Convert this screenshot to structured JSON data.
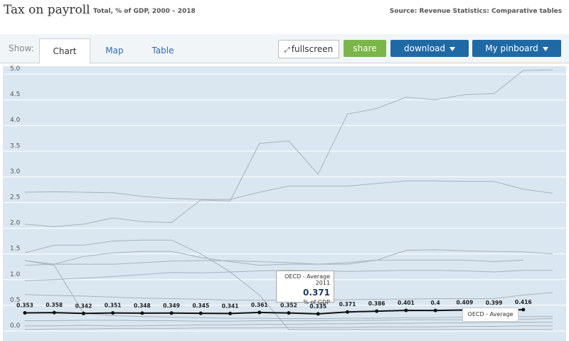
{
  "header": {
    "title": "Tax on payroll",
    "subtitle": "Total, % of GDP, 2000 – 2018",
    "source": "Source: Revenue Statistics: Comparative tables"
  },
  "toolbar": {
    "show": "Show:",
    "tabs": [
      "Chart",
      "Map",
      "Table"
    ],
    "fullscreen": "fullscreen",
    "share": "share",
    "download": "download",
    "pinboard": "My pinboard"
  },
  "chart_data": {
    "type": "line",
    "categories": [
      null,
      null,
      null,
      null,
      null,
      null,
      null,
      null,
      null,
      null,
      null,
      null,
      null,
      null,
      null,
      null,
      null,
      null,
      null
    ],
    "ylim": [
      0,
      5.2
    ],
    "yticks": [
      {
        "value": 0,
        "label": "0.0"
      },
      {
        "value": 0.5,
        "label": "0.5"
      },
      {
        "value": 1,
        "label": "1.0"
      },
      {
        "value": 1.5,
        "label": "1.5"
      },
      {
        "value": 2,
        "label": "2.0"
      },
      {
        "value": 2.5,
        "label": "2.5"
      },
      {
        "value": 3,
        "label": "3.0"
      },
      {
        "value": 3.5,
        "label": "3.5"
      },
      {
        "value": 4,
        "label": "4.0"
      },
      {
        "value": 4.5,
        "label": "4.5"
      },
      {
        "value": 5,
        "label": "5.0"
      }
    ],
    "grid": true,
    "series": [
      {
        "name": "OECD - Average",
        "color": "#111111",
        "values": [
          0.353,
          0.358,
          0.342,
          0.351,
          0.348,
          0.349,
          0.345,
          0.341,
          0.361,
          0.352,
          0.335,
          0.371,
          0.386,
          0.401,
          0.4,
          0.409,
          0.399,
          0.416,
          null
        ]
      },
      {
        "color": "#a5b2bd",
        "values": [
          2.08,
          2.03,
          2.08,
          2.2,
          2.13,
          2.11,
          2.55,
          2.53,
          3.65,
          3.7,
          3.05,
          4.22,
          4.33,
          4.55,
          4.5,
          4.6,
          4.62,
          5.07,
          5.08
        ]
      },
      {
        "color": "#a5b2bd",
        "values": [
          2.7,
          2.71,
          2.7,
          2.69,
          2.62,
          2.58,
          2.56,
          2.56,
          2.7,
          2.82,
          2.82,
          2.82,
          2.87,
          2.92,
          2.92,
          2.91,
          2.91,
          2.76,
          2.68
        ]
      },
      {
        "color": "#a5b2bd",
        "values": [
          1.52,
          1.67,
          1.67,
          1.75,
          1.77,
          1.77,
          1.5,
          1.15,
          0.7,
          0.03,
          0.03,
          0.03,
          0.03,
          0.03,
          0.03,
          0.03,
          0.03,
          0.03,
          0.03
        ]
      },
      {
        "color": "#a5b2bd",
        "values": [
          1.28,
          1.3,
          1.45,
          1.52,
          1.55,
          1.55,
          1.43,
          1.35,
          1.28,
          1.3,
          1.3,
          1.3,
          1.38,
          1.57,
          1.58,
          1.56,
          1.55,
          1.54,
          1.5
        ]
      },
      {
        "color": "#a5b2bd",
        "values": [
          1.37,
          1.3,
          1.3,
          1.3,
          1.33,
          1.36,
          1.37,
          1.37,
          1.35,
          1.33,
          1.3,
          1.33,
          1.38,
          1.38,
          1.38,
          1.38,
          1.35,
          1.38,
          null
        ]
      },
      {
        "color": "#a5b2bd",
        "values": [
          1.37,
          1.28,
          0.35,
          0.3,
          0.28,
          0.27,
          0.26,
          0.25,
          0.25,
          0.24,
          0.24,
          0.25,
          0.25,
          0.26,
          0.26,
          0.27,
          0.27,
          0.28,
          0.28
        ]
      },
      {
        "color": "#a5b2bd",
        "values": [
          0.98,
          1.0,
          1.03,
          1.06,
          1.1,
          1.14,
          1.13,
          1.15,
          1.17,
          1.18,
          1.17,
          1.16,
          1.17,
          1.18,
          1.18,
          1.17,
          1.15,
          1.18,
          1.18
        ]
      },
      {
        "color": "#a5b2bd",
        "values": [
          0.71,
          0.69,
          0.68,
          0.66,
          0.64,
          0.63,
          0.62,
          0.6,
          0.6,
          0.6,
          0.6,
          0.61,
          0.62,
          0.62,
          0.63,
          0.63,
          0.63,
          0.7,
          0.75
        ]
      },
      {
        "color": "#a5b2bd",
        "values": [
          0.2,
          0.2,
          0.21,
          0.21,
          0.2,
          0.2,
          0.19,
          0.19,
          0.2,
          0.2,
          0.2,
          0.21,
          0.21,
          0.22,
          0.22,
          0.22,
          0.23,
          0.23,
          0.24
        ]
      },
      {
        "color": "#a5b2bd",
        "values": [
          0.1,
          0.1,
          0.11,
          0.1,
          0.1,
          0.11,
          0.12,
          0.12,
          0.13,
          0.13,
          0.14,
          0.14,
          0.15,
          0.15,
          0.16,
          0.16,
          0.17,
          0.17,
          0.17
        ]
      },
      {
        "color": "#a5b2bd",
        "values": [
          0.03,
          0.04,
          0.04,
          0.05,
          0.05,
          0.05,
          0.06,
          0.06,
          0.06,
          0.07,
          0.07,
          0.07,
          0.08,
          0.08,
          0.08,
          0.09,
          0.09,
          0.1,
          0.1
        ]
      }
    ],
    "tooltip": {
      "title": "OECD - Average 2011",
      "unit": "% of GDP"
    }
  }
}
